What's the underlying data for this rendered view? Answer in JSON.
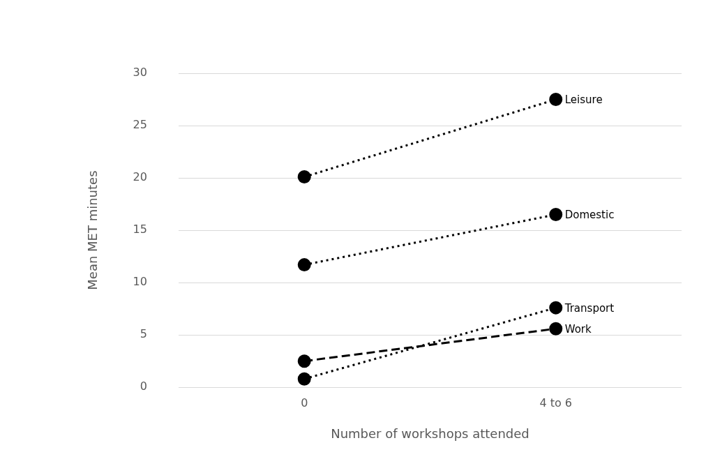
{
  "chart_data": {
    "type": "line",
    "xlabel": "Number of workshops attended",
    "ylabel": "Mean MET minutes",
    "categories": [
      "0",
      "4 to 6"
    ],
    "series": [
      {
        "name": "Leisure",
        "color": "#000000",
        "values": [
          20.1,
          27.5
        ],
        "line_style": "dotted"
      },
      {
        "name": "Domestic",
        "color": "#000000",
        "values": [
          11.7,
          16.5
        ],
        "line_style": "dotted"
      },
      {
        "name": "Transport",
        "color": "#000000",
        "values": [
          0.8,
          7.6
        ],
        "line_style": "dotted"
      },
      {
        "name": "Work",
        "color": "#000000",
        "values": [
          2.5,
          5.6
        ],
        "line_style": "dashed"
      }
    ],
    "ylim": [
      0,
      30
    ],
    "yticks": [
      0,
      5,
      10,
      15,
      20,
      25,
      30
    ],
    "grid": "y",
    "legend": false,
    "marker": "circle"
  }
}
